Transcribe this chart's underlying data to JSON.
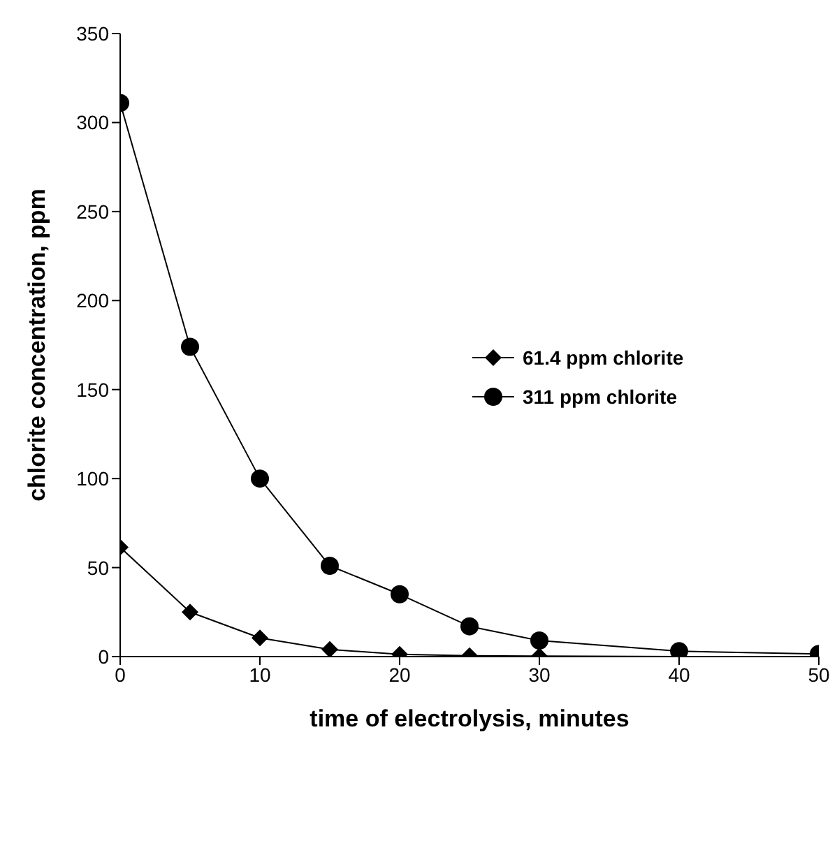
{
  "chart_data": {
    "type": "line",
    "xlabel": "time of electrolysis, minutes",
    "ylabel": "chlorite concentration, ppm",
    "x": [
      0,
      5,
      10,
      15,
      20,
      25,
      30,
      40,
      50
    ],
    "series": [
      {
        "name": "61.4 ppm chlorite",
        "color": "#000000",
        "marker": "diamond",
        "values": [
          61.4,
          25,
          10.5,
          4,
          1.3,
          0.5,
          0.3,
          0,
          0
        ]
      },
      {
        "name": "311 ppm chlorite",
        "color": "#000000",
        "marker": "circle",
        "values": [
          311,
          174,
          100,
          51,
          35,
          17,
          9,
          3,
          1.5
        ]
      }
    ],
    "xlim": [
      0,
      50
    ],
    "xticks": [
      0,
      10,
      20,
      30,
      40,
      50
    ],
    "ylim": [
      0,
      350
    ],
    "yticks": [
      0,
      50,
      100,
      150,
      200,
      250,
      300,
      350
    ],
    "grid": false,
    "legend": "right",
    "line_style": "solid"
  }
}
